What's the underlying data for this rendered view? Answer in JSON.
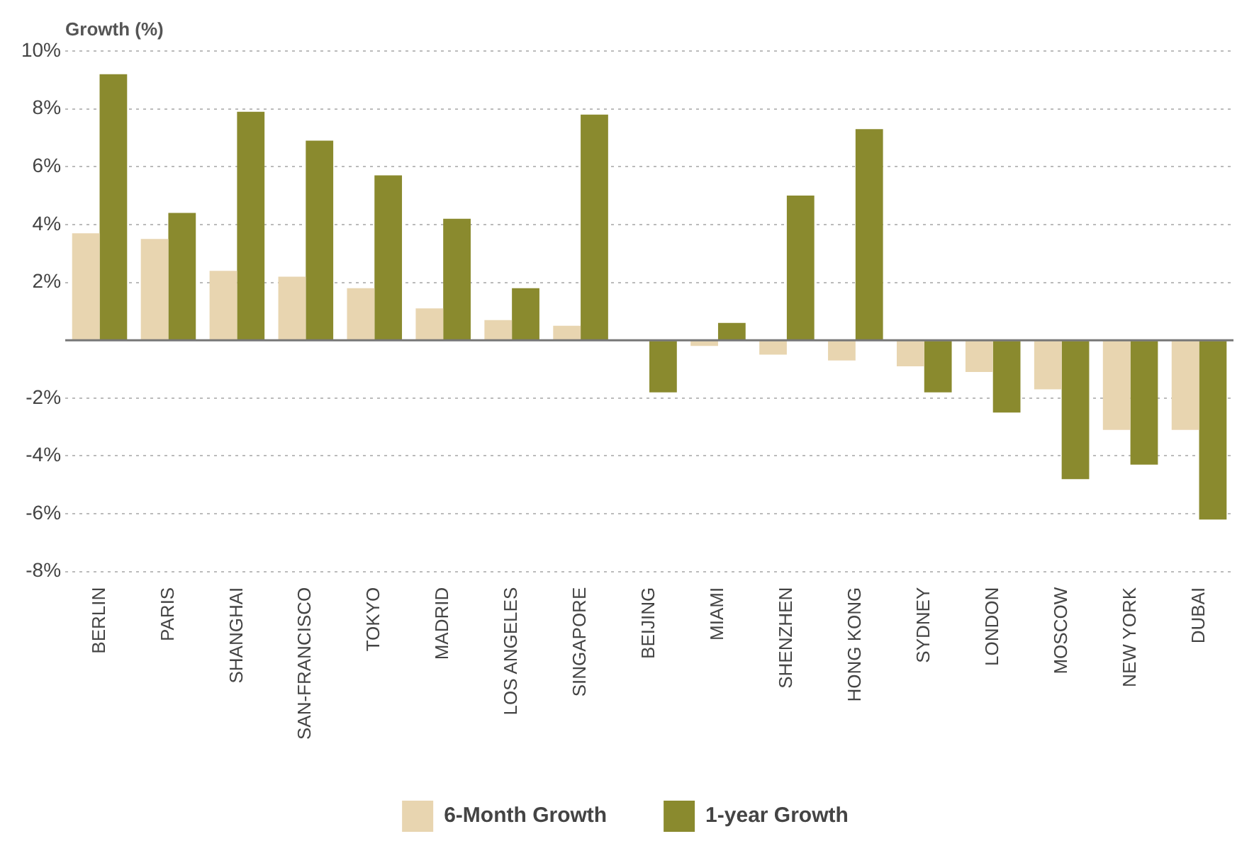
{
  "chart_data": {
    "type": "bar",
    "ylabel": "Growth (%)",
    "categories": [
      "BERLIN",
      "PARIS",
      "SHANGHAI",
      "SAN-FRANCISCO",
      "TOKYO",
      "MADRID",
      "LOS ANGELES",
      "SINGAPORE",
      "BEIJING",
      "MIAMI",
      "SHENZHEN",
      "HONG KONG",
      "SYDNEY",
      "LONDON",
      "MOSCOW",
      "NEW YORK",
      "DUBAI"
    ],
    "series": [
      {
        "name": "6-Month Growth",
        "color": "#e8d5b0",
        "values": [
          3.7,
          3.5,
          2.4,
          2.2,
          1.8,
          1.1,
          0.7,
          0.5,
          0,
          -0.2,
          -0.5,
          -0.7,
          -0.9,
          -1.1,
          -1.7,
          -3.1,
          -3.1
        ]
      },
      {
        "name": "1-year Growth",
        "color": "#8a8a2e",
        "values": [
          9.2,
          4.4,
          7.9,
          6.9,
          5.7,
          4.2,
          1.8,
          7.8,
          -1.8,
          0.6,
          5.0,
          7.3,
          -1.8,
          -2.5,
          -4.8,
          -4.3,
          -6.2
        ]
      }
    ],
    "ylim": [
      -8,
      10
    ],
    "yticks": [
      {
        "value": -8,
        "label": "-8%"
      },
      {
        "value": -6,
        "label": "-6%"
      },
      {
        "value": -4,
        "label": "-4%"
      },
      {
        "value": -2,
        "label": "-2%"
      },
      {
        "value": 0,
        "label": null
      },
      {
        "value": 2,
        "label": "2%"
      },
      {
        "value": 4,
        "label": "4%"
      },
      {
        "value": 6,
        "label": "6%"
      },
      {
        "value": 8,
        "label": "8%"
      },
      {
        "value": 10,
        "label": "10%"
      }
    ],
    "grid": "y",
    "legend": "bottom"
  }
}
